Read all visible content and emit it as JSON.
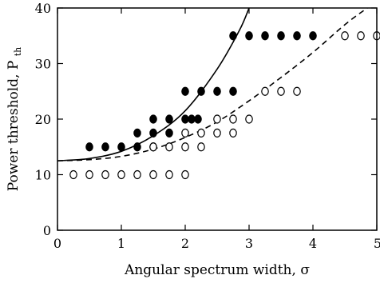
{
  "chart_data": {
    "type": "scatter",
    "xlabel": "Angular spectrum width, σ",
    "ylabel": {
      "main": "Power threshold, P",
      "subscript": "th"
    },
    "xlim": [
      0,
      5
    ],
    "ylim": [
      0,
      40
    ],
    "xticks": [
      0,
      1,
      2,
      3,
      4,
      5
    ],
    "yticks": [
      0,
      10,
      20,
      30,
      40
    ],
    "xtick_labels": [
      "0",
      "1",
      "2",
      "3",
      "4",
      "5"
    ],
    "ytick_labels": [
      "0",
      "10",
      "20",
      "30",
      "40"
    ],
    "grid": false,
    "series": [
      {
        "marker": "filled-circle",
        "points": [
          [
            0.5,
            15
          ],
          [
            1.0,
            15
          ],
          [
            1.5,
            15
          ],
          [
            0.75,
            15
          ],
          [
            1.25,
            15
          ],
          [
            1.25,
            17.5
          ],
          [
            1.5,
            17.5
          ],
          [
            1.75,
            17.5
          ],
          [
            1.5,
            20
          ],
          [
            1.75,
            20
          ],
          [
            2.0,
            20
          ],
          [
            2.1,
            20
          ],
          [
            2.2,
            20
          ],
          [
            2.0,
            25
          ],
          [
            2.25,
            25
          ],
          [
            2.5,
            25
          ],
          [
            2.75,
            25
          ],
          [
            2.75,
            35
          ],
          [
            3.0,
            35
          ],
          [
            3.25,
            35
          ],
          [
            3.5,
            35
          ],
          [
            3.75,
            35
          ],
          [
            4.0,
            35
          ]
        ]
      },
      {
        "marker": "open-circle",
        "points": [
          [
            0.25,
            10
          ],
          [
            0.5,
            10
          ],
          [
            0.75,
            10
          ],
          [
            1.0,
            10
          ],
          [
            1.25,
            10
          ],
          [
            1.5,
            10
          ],
          [
            1.75,
            10
          ],
          [
            2.0,
            10
          ],
          [
            1.5,
            15
          ],
          [
            1.75,
            15
          ],
          [
            2.0,
            15
          ],
          [
            2.25,
            15
          ],
          [
            2.0,
            17.5
          ],
          [
            2.25,
            17.5
          ],
          [
            2.5,
            17.5
          ],
          [
            2.75,
            17.5
          ],
          [
            2.5,
            20
          ],
          [
            2.75,
            20
          ],
          [
            3.0,
            20
          ],
          [
            3.25,
            25
          ],
          [
            3.5,
            25
          ],
          [
            3.75,
            25
          ],
          [
            4.5,
            35
          ],
          [
            4.75,
            35
          ],
          [
            5.0,
            35
          ]
        ]
      }
    ],
    "curves": [
      {
        "style": "solid",
        "points": [
          [
            0,
            12.5
          ],
          [
            0.5,
            12.9
          ],
          [
            1,
            14.2
          ],
          [
            1.5,
            17.0
          ],
          [
            2,
            21.5
          ],
          [
            2.5,
            29.0
          ],
          [
            2.85,
            36.0
          ],
          [
            3.0,
            40.0
          ]
        ]
      },
      {
        "style": "dashed",
        "points": [
          [
            0,
            12.5
          ],
          [
            0.5,
            12.7
          ],
          [
            1,
            13.3
          ],
          [
            1.5,
            14.6
          ],
          [
            2,
            16.7
          ],
          [
            2.5,
            19.5
          ],
          [
            3,
            23.3
          ],
          [
            3.5,
            27.5
          ],
          [
            4,
            32.0
          ],
          [
            4.5,
            37.0
          ],
          [
            4.85,
            40.0
          ]
        ]
      }
    ]
  }
}
